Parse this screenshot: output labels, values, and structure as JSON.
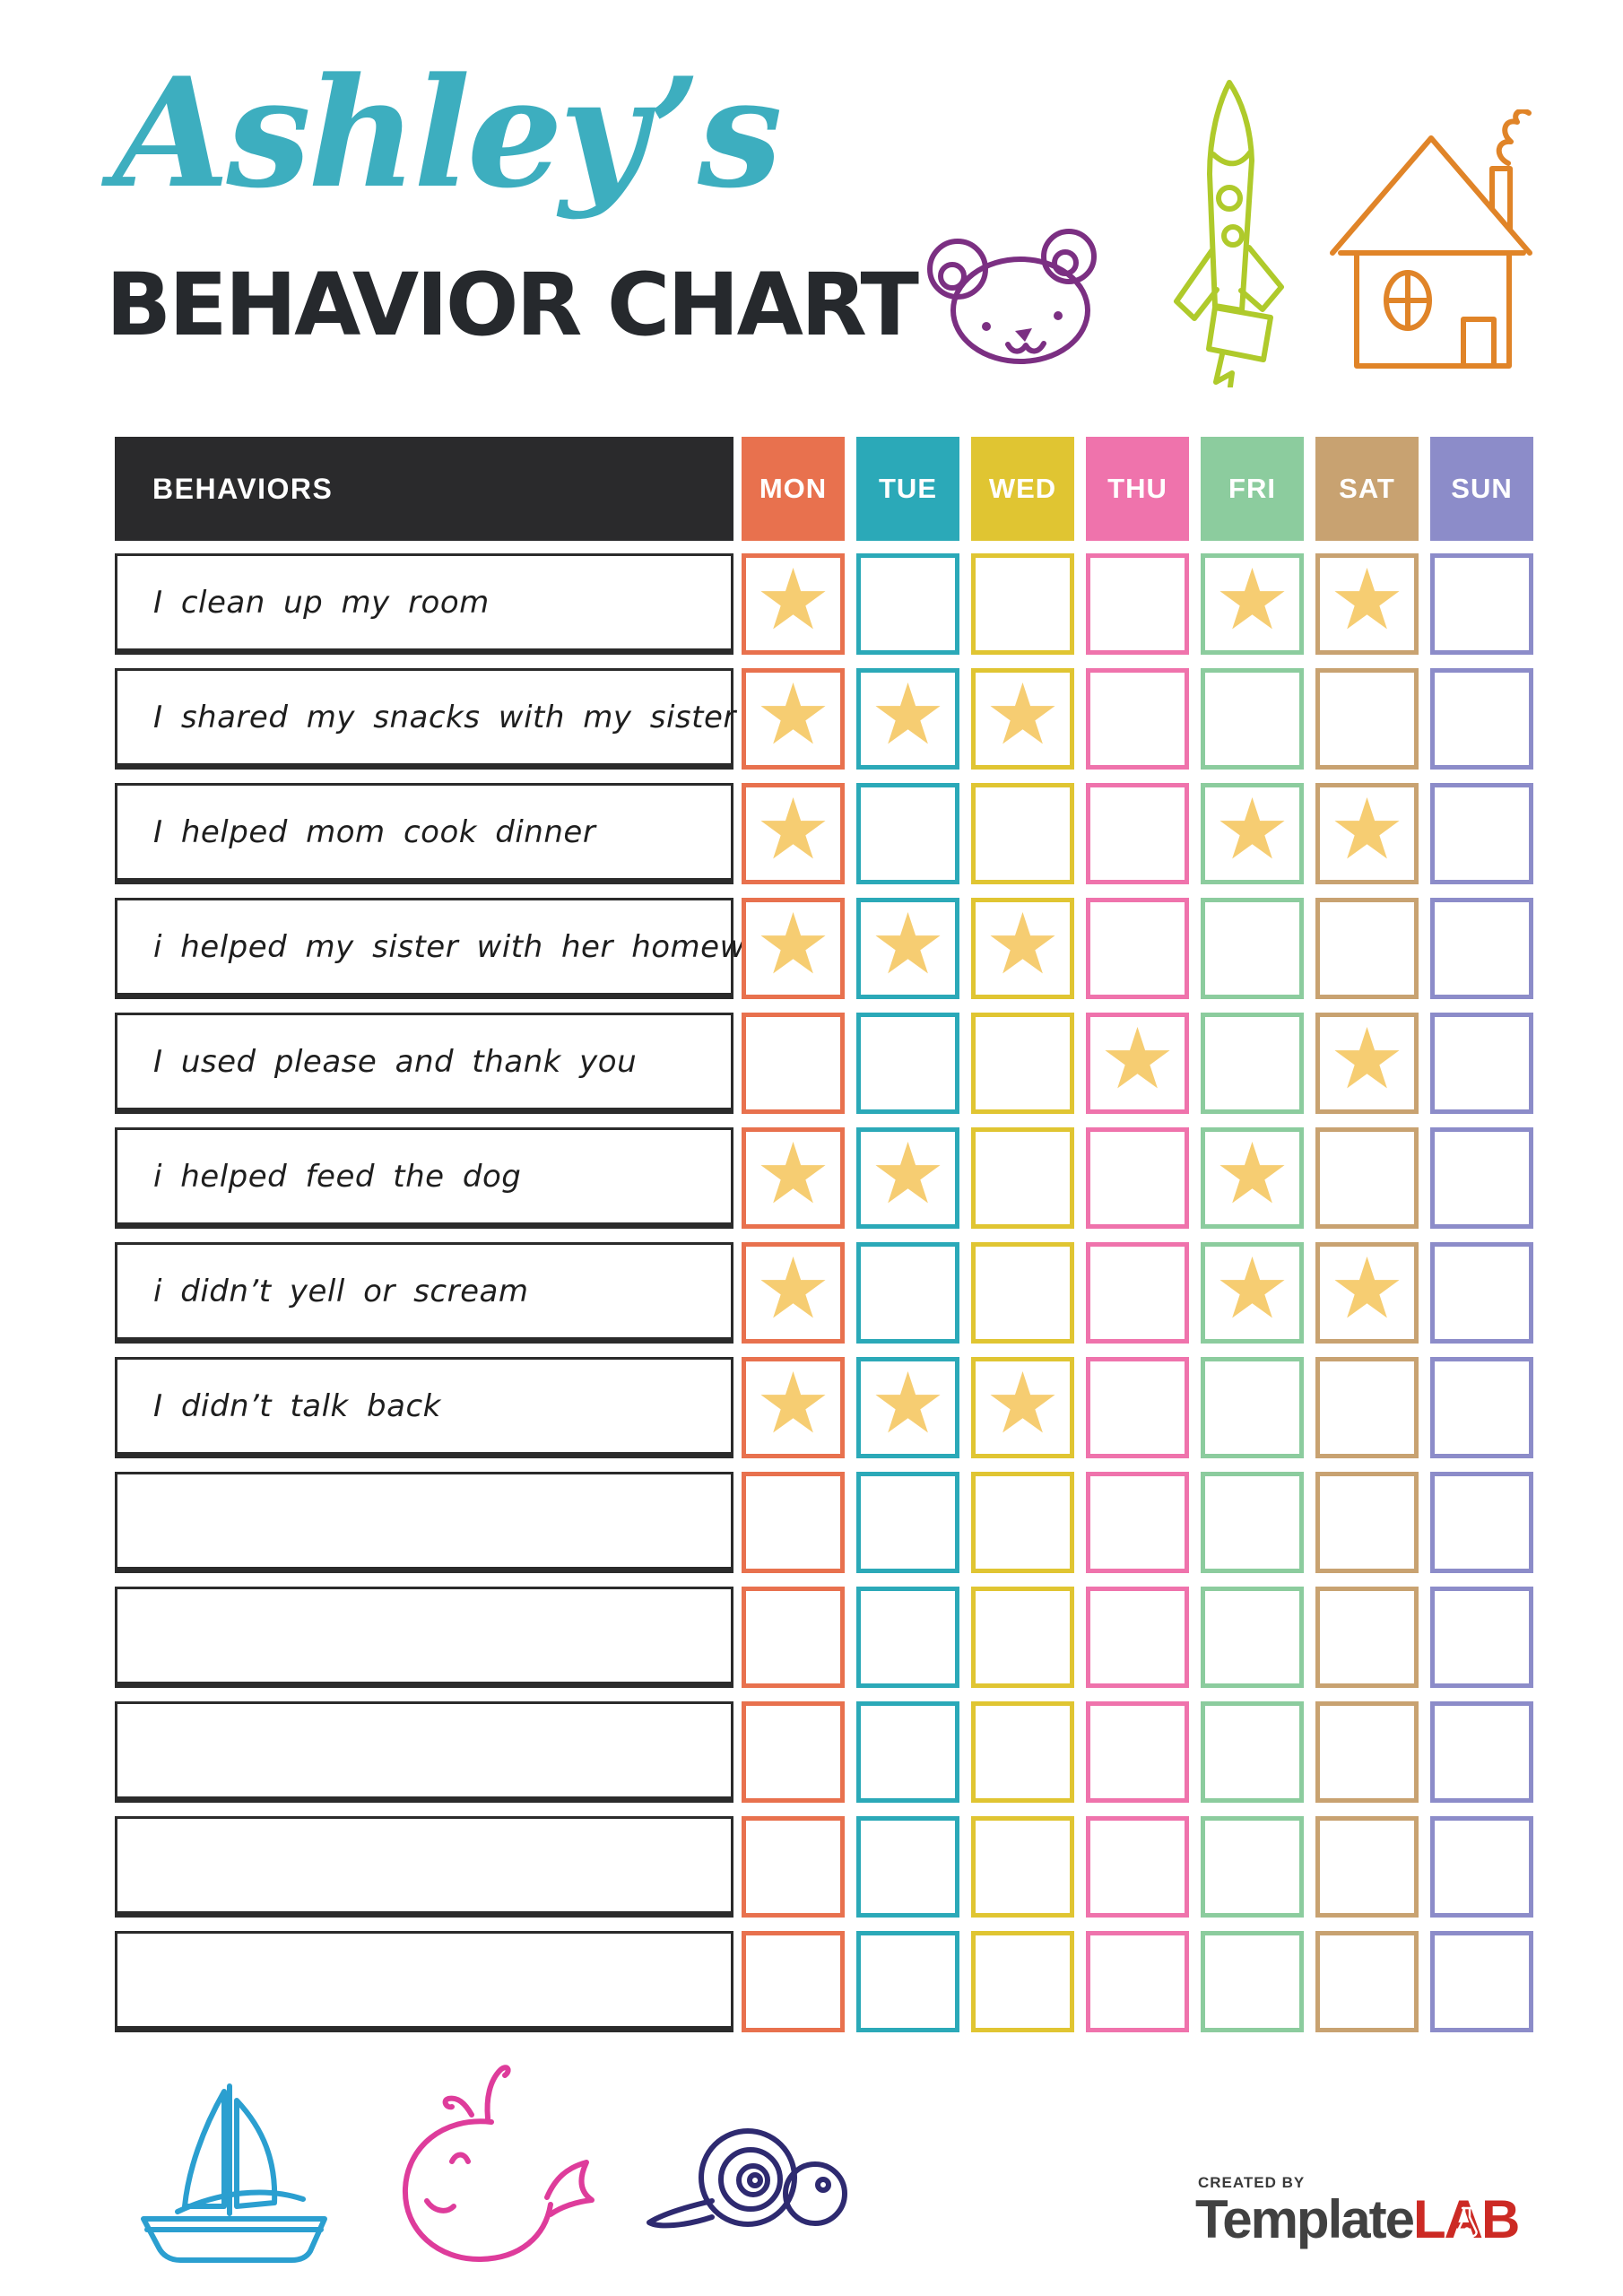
{
  "header": {
    "name_script": "Ashley’s",
    "script_color": "#3DAEBF",
    "title": "BEHAVIOR CHART"
  },
  "decor": {
    "top_icons": [
      "teddy-bear",
      "rocket",
      "house"
    ],
    "bottom_icons": [
      "sailboat",
      "whale",
      "snail"
    ],
    "colors": {
      "bear": "#7B2F82",
      "rocket": "#AFCA2B",
      "house": "#E08428",
      "sailboat": "#2B9FD0",
      "whale": "#DE3C9B",
      "snail": "#2E2A70"
    }
  },
  "table": {
    "behaviors_label": "BEHAVIORS",
    "header_bg": "#2A2A2C",
    "star_icon": "star",
    "star_color": "#F6CD72",
    "days": [
      {
        "label": "MON",
        "color": "#E8714E"
      },
      {
        "label": "TUE",
        "color": "#2BA9B8"
      },
      {
        "label": "WED",
        "color": "#E0C532"
      },
      {
        "label": "THU",
        "color": "#EF73AC"
      },
      {
        "label": "FRI",
        "color": "#8CCC9E"
      },
      {
        "label": "SAT",
        "color": "#C8A271"
      },
      {
        "label": "SUN",
        "color": "#8C8CC9"
      }
    ],
    "rows": [
      {
        "behavior": "I clean up my room",
        "stars": [
          0,
          4,
          5
        ]
      },
      {
        "behavior": "I shared my snacks with my sister",
        "stars": [
          0,
          1,
          2
        ]
      },
      {
        "behavior": "I helped mom cook dinner",
        "stars": [
          0,
          4,
          5
        ]
      },
      {
        "behavior": "i helped my sister with her homework",
        "stars": [
          0,
          1,
          2
        ]
      },
      {
        "behavior": "I used please and thank you",
        "stars": [
          3,
          5
        ]
      },
      {
        "behavior": "i helped feed the dog",
        "stars": [
          0,
          1,
          4
        ]
      },
      {
        "behavior": "i didn’t yell or scream",
        "stars": [
          0,
          4,
          5
        ]
      },
      {
        "behavior": "I didn’t talk back",
        "stars": [
          0,
          1,
          2
        ]
      },
      {
        "behavior": "",
        "stars": []
      },
      {
        "behavior": "",
        "stars": []
      },
      {
        "behavior": "",
        "stars": []
      },
      {
        "behavior": "",
        "stars": []
      },
      {
        "behavior": "",
        "stars": []
      }
    ]
  },
  "footer": {
    "created_by": "CREATED BY",
    "brand_dark": "Template",
    "brand_accent": "LAB",
    "brand_dark_color": "#414141",
    "brand_accent_color": "#CC2A24"
  }
}
